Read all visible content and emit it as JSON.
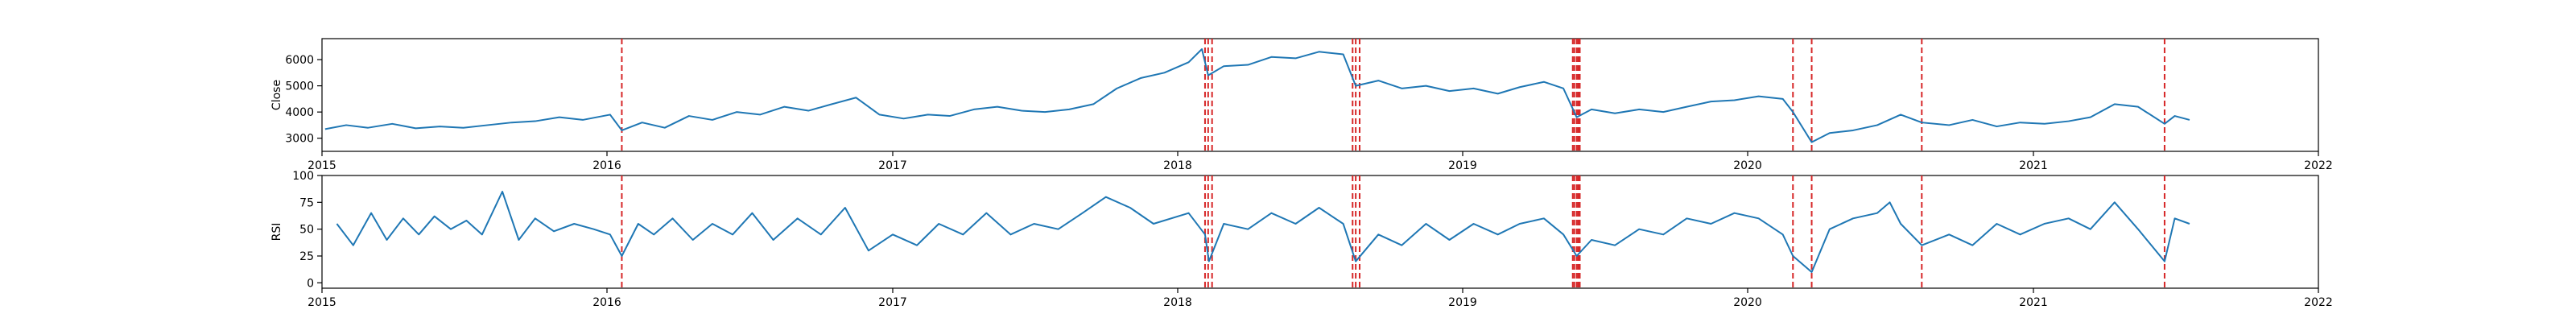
{
  "chart_data": [
    {
      "type": "line",
      "ylabel": "Close",
      "xlabel": "",
      "series_color": "#1f77b4",
      "event_color": "#d62728",
      "xlim": [
        "2015-01-01",
        "2022-01-01"
      ],
      "ylim": [
        2500,
        6800
      ],
      "yticks": [
        3000,
        4000,
        5000,
        6000
      ],
      "xticks": [
        "2015",
        "2016",
        "2017",
        "2018",
        "2019",
        "2020",
        "2021",
        "2022"
      ],
      "events": [
        "2016-01-20",
        "2018-02-05",
        "2018-02-09",
        "2018-02-14",
        "2018-08-13",
        "2018-08-17",
        "2018-08-22",
        "2019-05-22",
        "2019-05-24",
        "2019-05-27",
        "2019-05-29",
        "2019-05-31",
        "2020-02-28",
        "2020-03-23",
        "2020-08-11",
        "2021-06-18"
      ],
      "points": [
        [
          "2015-01-05",
          3350
        ],
        [
          "2015-02-01",
          3500
        ],
        [
          "2015-03-01",
          3400
        ],
        [
          "2015-04-01",
          3550
        ],
        [
          "2015-05-01",
          3380
        ],
        [
          "2015-06-01",
          3450
        ],
        [
          "2015-07-01",
          3400
        ],
        [
          "2015-08-01",
          3500
        ],
        [
          "2015-09-01",
          3600
        ],
        [
          "2015-10-01",
          3650
        ],
        [
          "2015-11-01",
          3800
        ],
        [
          "2015-12-01",
          3700
        ],
        [
          "2016-01-05",
          3900
        ],
        [
          "2016-01-20",
          3300
        ],
        [
          "2016-02-15",
          3600
        ],
        [
          "2016-03-15",
          3400
        ],
        [
          "2016-04-15",
          3850
        ],
        [
          "2016-05-15",
          3700
        ],
        [
          "2016-06-15",
          4000
        ],
        [
          "2016-07-15",
          3900
        ],
        [
          "2016-08-15",
          4200
        ],
        [
          "2016-09-15",
          4050
        ],
        [
          "2016-10-15",
          4300
        ],
        [
          "2016-11-15",
          4550
        ],
        [
          "2016-12-15",
          3900
        ],
        [
          "2017-01-15",
          3750
        ],
        [
          "2017-02-15",
          3900
        ],
        [
          "2017-03-15",
          3850
        ],
        [
          "2017-04-15",
          4100
        ],
        [
          "2017-05-15",
          4200
        ],
        [
          "2017-06-15",
          4050
        ],
        [
          "2017-07-15",
          4000
        ],
        [
          "2017-08-15",
          4100
        ],
        [
          "2017-09-15",
          4300
        ],
        [
          "2017-10-15",
          4900
        ],
        [
          "2017-11-15",
          5300
        ],
        [
          "2017-12-15",
          5500
        ],
        [
          "2018-01-15",
          5900
        ],
        [
          "2018-02-01",
          6400
        ],
        [
          "2018-02-09",
          5400
        ],
        [
          "2018-03-01",
          5750
        ],
        [
          "2018-04-01",
          5800
        ],
        [
          "2018-05-01",
          6100
        ],
        [
          "2018-06-01",
          6050
        ],
        [
          "2018-07-01",
          6300
        ],
        [
          "2018-08-01",
          6200
        ],
        [
          "2018-08-17",
          5000
        ],
        [
          "2018-09-15",
          5200
        ],
        [
          "2018-10-15",
          4900
        ],
        [
          "2018-11-15",
          5000
        ],
        [
          "2018-12-15",
          4800
        ],
        [
          "2019-01-15",
          4900
        ],
        [
          "2019-02-15",
          4700
        ],
        [
          "2019-03-15",
          4950
        ],
        [
          "2019-04-15",
          5150
        ],
        [
          "2019-05-10",
          4900
        ],
        [
          "2019-05-27",
          3800
        ],
        [
          "2019-06-15",
          4100
        ],
        [
          "2019-07-15",
          3950
        ],
        [
          "2019-08-15",
          4100
        ],
        [
          "2019-09-15",
          4000
        ],
        [
          "2019-10-15",
          4200
        ],
        [
          "2019-11-15",
          4400
        ],
        [
          "2019-12-15",
          4450
        ],
        [
          "2020-01-15",
          4600
        ],
        [
          "2020-02-15",
          4500
        ],
        [
          "2020-02-28",
          4000
        ],
        [
          "2020-03-23",
          2850
        ],
        [
          "2020-04-15",
          3200
        ],
        [
          "2020-05-15",
          3300
        ],
        [
          "2020-06-15",
          3500
        ],
        [
          "2020-07-15",
          3900
        ],
        [
          "2020-08-11",
          3600
        ],
        [
          "2020-09-15",
          3500
        ],
        [
          "2020-10-15",
          3700
        ],
        [
          "2020-11-15",
          3450
        ],
        [
          "2020-12-15",
          3600
        ],
        [
          "2021-01-15",
          3550
        ],
        [
          "2021-02-15",
          3650
        ],
        [
          "2021-03-15",
          3800
        ],
        [
          "2021-04-15",
          4300
        ],
        [
          "2021-05-15",
          4200
        ],
        [
          "2021-06-18",
          3550
        ],
        [
          "2021-07-01",
          3850
        ],
        [
          "2021-07-20",
          3700
        ]
      ]
    },
    {
      "type": "line",
      "ylabel": "RSI",
      "xlabel": "",
      "series_color": "#1f77b4",
      "event_color": "#d62728",
      "xlim": [
        "2015-01-01",
        "2022-01-01"
      ],
      "ylim": [
        -5,
        100
      ],
      "yticks": [
        0,
        25,
        50,
        75,
        100
      ],
      "xticks": [
        "2015",
        "2016",
        "2017",
        "2018",
        "2019",
        "2020",
        "2021",
        "2022"
      ],
      "events": [
        "2016-01-20",
        "2018-02-05",
        "2018-02-09",
        "2018-02-14",
        "2018-08-13",
        "2018-08-17",
        "2018-08-22",
        "2019-05-22",
        "2019-05-24",
        "2019-05-27",
        "2019-05-29",
        "2019-05-31",
        "2020-02-28",
        "2020-03-23",
        "2020-08-11",
        "2021-06-18"
      ],
      "points": [
        [
          "2015-01-20",
          55
        ],
        [
          "2015-02-10",
          35
        ],
        [
          "2015-03-05",
          65
        ],
        [
          "2015-03-25",
          40
        ],
        [
          "2015-04-15",
          60
        ],
        [
          "2015-05-05",
          45
        ],
        [
          "2015-05-25",
          62
        ],
        [
          "2015-06-15",
          50
        ],
        [
          "2015-07-05",
          58
        ],
        [
          "2015-07-25",
          45
        ],
        [
          "2015-08-20",
          85
        ],
        [
          "2015-09-10",
          40
        ],
        [
          "2015-10-01",
          60
        ],
        [
          "2015-10-25",
          48
        ],
        [
          "2015-11-20",
          55
        ],
        [
          "2015-12-15",
          50
        ],
        [
          "2016-01-05",
          45
        ],
        [
          "2016-01-20",
          25
        ],
        [
          "2016-02-10",
          55
        ],
        [
          "2016-03-01",
          45
        ],
        [
          "2016-03-25",
          60
        ],
        [
          "2016-04-20",
          40
        ],
        [
          "2016-05-15",
          55
        ],
        [
          "2016-06-10",
          45
        ],
        [
          "2016-07-05",
          65
        ],
        [
          "2016-08-01",
          40
        ],
        [
          "2016-09-01",
          60
        ],
        [
          "2016-10-01",
          45
        ],
        [
          "2016-11-01",
          70
        ],
        [
          "2016-12-01",
          30
        ],
        [
          "2017-01-01",
          45
        ],
        [
          "2017-02-01",
          35
        ],
        [
          "2017-03-01",
          55
        ],
        [
          "2017-04-01",
          45
        ],
        [
          "2017-05-01",
          65
        ],
        [
          "2017-06-01",
          45
        ],
        [
          "2017-07-01",
          55
        ],
        [
          "2017-08-01",
          50
        ],
        [
          "2017-09-01",
          65
        ],
        [
          "2017-10-01",
          80
        ],
        [
          "2017-11-01",
          70
        ],
        [
          "2017-12-01",
          55
        ],
        [
          "2018-01-15",
          65
        ],
        [
          "2018-02-05",
          45
        ],
        [
          "2018-02-10",
          20
        ],
        [
          "2018-03-01",
          55
        ],
        [
          "2018-04-01",
          50
        ],
        [
          "2018-05-01",
          65
        ],
        [
          "2018-06-01",
          55
        ],
        [
          "2018-07-01",
          70
        ],
        [
          "2018-08-01",
          55
        ],
        [
          "2018-08-17",
          20
        ],
        [
          "2018-09-15",
          45
        ],
        [
          "2018-10-15",
          35
        ],
        [
          "2018-11-15",
          55
        ],
        [
          "2018-12-15",
          40
        ],
        [
          "2019-01-15",
          55
        ],
        [
          "2019-02-15",
          45
        ],
        [
          "2019-03-15",
          55
        ],
        [
          "2019-04-15",
          60
        ],
        [
          "2019-05-10",
          45
        ],
        [
          "2019-05-27",
          25
        ],
        [
          "2019-06-15",
          40
        ],
        [
          "2019-07-15",
          35
        ],
        [
          "2019-08-15",
          50
        ],
        [
          "2019-09-15",
          45
        ],
        [
          "2019-10-15",
          60
        ],
        [
          "2019-11-15",
          55
        ],
        [
          "2019-12-15",
          65
        ],
        [
          "2020-01-15",
          60
        ],
        [
          "2020-02-15",
          45
        ],
        [
          "2020-02-28",
          25
        ],
        [
          "2020-03-23",
          10
        ],
        [
          "2020-04-15",
          50
        ],
        [
          "2020-05-15",
          60
        ],
        [
          "2020-06-15",
          65
        ],
        [
          "2020-07-01",
          75
        ],
        [
          "2020-07-15",
          55
        ],
        [
          "2020-08-11",
          35
        ],
        [
          "2020-09-15",
          45
        ],
        [
          "2020-10-15",
          35
        ],
        [
          "2020-11-15",
          55
        ],
        [
          "2020-12-15",
          45
        ],
        [
          "2021-01-15",
          55
        ],
        [
          "2021-02-15",
          60
        ],
        [
          "2021-03-15",
          50
        ],
        [
          "2021-04-15",
          75
        ],
        [
          "2021-05-15",
          50
        ],
        [
          "2021-06-18",
          20
        ],
        [
          "2021-07-01",
          60
        ],
        [
          "2021-07-20",
          55
        ]
      ]
    }
  ]
}
